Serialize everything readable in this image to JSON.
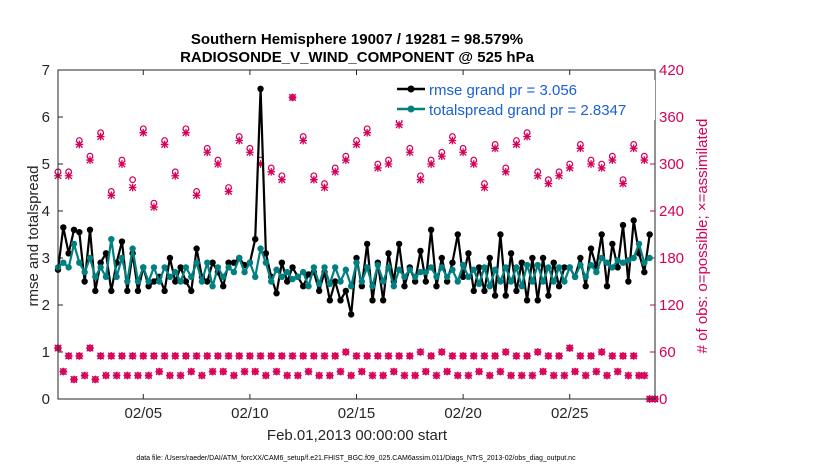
{
  "chart_data": {
    "type": "line",
    "title_line1": "Southern Hemisphere 19007 / 19281 = 98.579%",
    "title_line2": "RADIOSONDE_V_WIND_COMPONENT @ 525 hPa",
    "xlabel": "Feb.01,2013 00:00:00 start",
    "ylabel_left": "rmse and totalspread",
    "ylabel_right": "# of obs: o=possible; ×=assimilated",
    "footnote": "data file: /Users/raeder/DAI/ATM_forcXX/CAM6_setup/f.e21.FHIST_BGC.f09_025.CAM6assim.011/Diags_NTrS_2013-02/obs_diag_output.nc",
    "xlim": [
      1.0,
      29.0
    ],
    "ylim_left": [
      0,
      7
    ],
    "ylim_right": [
      0,
      420
    ],
    "x_ticks": [
      5,
      10,
      15,
      20,
      25
    ],
    "x_tick_labels": [
      "02/05",
      "02/10",
      "02/15",
      "02/20",
      "02/25"
    ],
    "y_ticks_left": [
      "0",
      "1",
      "2",
      "3",
      "4",
      "5",
      "6",
      "7"
    ],
    "y_ticks_right": [
      "0",
      "60",
      "120",
      "180",
      "240",
      "300",
      "360",
      "420"
    ],
    "legend": [
      "rmse grand pr = 3.056",
      "totalspread grand pr = 2.8347"
    ],
    "colors": {
      "rmse": "#000000",
      "spread": "#008080",
      "obs": "#d6005a",
      "legend_text": "#1a5fd6"
    },
    "x_start": 1.0,
    "x_step": 0.25,
    "series": [
      {
        "name": "rmse",
        "values": [
          2.75,
          3.65,
          3.1,
          3.6,
          3.55,
          2.5,
          3.6,
          2.3,
          2.9,
          3.1,
          2.3,
          2.9,
          3.35,
          2.3,
          3.1,
          2.3,
          2.8,
          2.4,
          2.5,
          2.6,
          2.3,
          3.0,
          2.5,
          2.8,
          2.5,
          2.3,
          3.2,
          2.6,
          2.5,
          2.9,
          2.7,
          2.4,
          2.9,
          2.9,
          3.0,
          2.85,
          2.9,
          3.4,
          6.6,
          3.1,
          2.6,
          2.25,
          2.9,
          2.5,
          2.8,
          2.6,
          2.4,
          2.65,
          2.7,
          2.3,
          2.7,
          2.1,
          2.5,
          2.1,
          2.3,
          1.8,
          3.0,
          2.4,
          3.3,
          2.1,
          2.9,
          2.1,
          3.1,
          2.5,
          3.3,
          2.4,
          2.8,
          2.5,
          3.15,
          2.5,
          3.6,
          2.4,
          3.0,
          2.5,
          2.9,
          3.5,
          2.6,
          3.1,
          2.3,
          2.8,
          2.3,
          3.0,
          2.2,
          3.5,
          2.2,
          3.1,
          2.3,
          2.9,
          2.1,
          3.0,
          2.1,
          3.0,
          2.2,
          2.9,
          2.4,
          2.8,
          2.8,
          2.6,
          3.0,
          2.4,
          3.2,
          2.8,
          3.5,
          2.4,
          3.3,
          2.8,
          3.7,
          2.5,
          3.8,
          3.1,
          2.7,
          3.5
        ]
      },
      {
        "name": "totalspread",
        "values": [
          2.8,
          2.9,
          2.8,
          3.3,
          2.9,
          2.7,
          3.0,
          2.6,
          2.8,
          2.6,
          3.4,
          2.6,
          3.0,
          2.5,
          3.2,
          2.5,
          2.8,
          2.5,
          2.8,
          2.5,
          2.8,
          2.6,
          2.7,
          2.5,
          2.8,
          2.6,
          2.9,
          2.5,
          2.9,
          2.4,
          2.8,
          2.6,
          2.8,
          2.7,
          3.0,
          2.7,
          2.9,
          2.6,
          3.2,
          2.9,
          2.5,
          2.75,
          2.6,
          2.7,
          2.55,
          2.6,
          2.7,
          2.4,
          2.8,
          2.45,
          2.8,
          2.45,
          2.8,
          2.5,
          2.75,
          2.4,
          2.9,
          2.5,
          2.8,
          2.4,
          2.85,
          2.5,
          2.8,
          2.4,
          2.75,
          2.6,
          2.75,
          2.6,
          2.7,
          2.7,
          2.8,
          2.6,
          2.8,
          2.6,
          2.75,
          2.5,
          2.85,
          2.6,
          2.75,
          2.45,
          2.8,
          2.4,
          2.75,
          2.5,
          2.8,
          2.5,
          2.8,
          2.4,
          2.85,
          2.5,
          2.85,
          2.5,
          2.8,
          2.5,
          2.8,
          2.5,
          2.8,
          2.6,
          2.85,
          2.6,
          2.85,
          2.7,
          3.0,
          2.9,
          2.8,
          2.95,
          2.9,
          2.95,
          3.0,
          3.3,
          2.9,
          3.0
        ]
      },
      {
        "name": "obs possible (o)",
        "values": [
          65,
          35,
          55,
          25,
          55,
          30,
          65,
          25,
          55,
          30,
          55,
          30,
          55,
          30,
          55,
          30,
          55,
          30,
          55,
          35,
          55,
          30,
          55,
          30,
          55,
          35,
          55,
          30,
          55,
          35,
          55,
          35,
          55,
          30,
          55,
          35,
          55,
          35,
          55,
          30,
          55,
          35,
          55,
          30,
          55,
          30,
          55,
          35,
          55,
          30,
          55,
          30,
          55,
          35,
          60,
          30,
          55,
          35,
          55,
          30,
          55,
          30,
          55,
          35,
          55,
          30,
          55,
          30,
          60,
          35,
          55,
          30,
          60,
          35,
          55,
          30,
          55,
          30,
          55,
          35,
          55,
          30,
          55,
          35,
          60,
          30,
          55,
          30,
          55,
          30,
          60,
          35,
          55,
          30,
          55,
          30,
          65,
          35,
          55,
          30,
          55,
          35,
          60,
          30,
          55,
          35,
          55,
          30,
          55,
          30,
          30,
          0
        ]
      },
      {
        "name": "obs assimilated (x)",
        "values": [
          65,
          35,
          55,
          25,
          55,
          30,
          65,
          25,
          55,
          30,
          55,
          30,
          55,
          30,
          55,
          30,
          55,
          30,
          55,
          35,
          55,
          30,
          55,
          30,
          55,
          35,
          55,
          30,
          55,
          35,
          55,
          35,
          55,
          30,
          55,
          35,
          55,
          35,
          55,
          30,
          55,
          35,
          55,
          30,
          55,
          30,
          55,
          35,
          55,
          30,
          55,
          30,
          55,
          35,
          60,
          30,
          55,
          35,
          55,
          30,
          55,
          30,
          55,
          35,
          55,
          30,
          55,
          30,
          60,
          35,
          55,
          30,
          60,
          35,
          55,
          30,
          55,
          30,
          55,
          35,
          55,
          30,
          55,
          35,
          60,
          30,
          55,
          30,
          55,
          30,
          60,
          35,
          55,
          30,
          55,
          30,
          65,
          35,
          55,
          30,
          55,
          35,
          60,
          30,
          55,
          35,
          55,
          30,
          55,
          30,
          30,
          0
        ]
      }
    ],
    "obs_high": {
      "x": [
        1.0,
        1.5,
        2.0,
        2.5,
        3.0,
        3.5,
        4.0,
        4.5,
        5.0,
        5.5,
        6.0,
        6.5,
        7.0,
        7.5,
        8.0,
        8.5,
        9.0,
        9.5,
        10.0,
        10.5,
        11.0,
        11.5,
        12.0,
        12.5,
        13.0,
        13.5,
        14.0,
        14.5,
        15.0,
        15.5,
        16.0,
        16.5,
        17.0,
        17.5,
        18.0,
        18.5,
        19.0,
        19.5,
        20.0,
        20.5,
        21.0,
        21.5,
        22.0,
        22.5,
        23.0,
        23.5,
        24.0,
        24.5,
        25.0,
        25.5,
        26.0,
        26.5,
        27.0,
        27.5,
        28.0,
        28.5,
        29.0
      ],
      "possible": [
        290,
        290,
        330,
        310,
        340,
        265,
        305,
        280,
        345,
        250,
        330,
        290,
        345,
        265,
        320,
        305,
        270,
        335,
        320,
        305,
        295,
        285,
        385,
        335,
        285,
        275,
        295,
        310,
        330,
        345,
        300,
        305,
        355,
        320,
        285,
        305,
        315,
        335,
        320,
        305,
        275,
        325,
        295,
        330,
        340,
        290,
        280,
        290,
        300,
        325,
        305,
        300,
        310,
        280,
        325,
        310,
        0
      ],
      "assimilated": [
        285,
        285,
        325,
        305,
        335,
        260,
        300,
        270,
        340,
        245,
        325,
        285,
        340,
        260,
        315,
        300,
        265,
        330,
        315,
        300,
        290,
        280,
        385,
        330,
        280,
        270,
        290,
        305,
        325,
        340,
        295,
        300,
        350,
        315,
        280,
        300,
        310,
        330,
        315,
        300,
        270,
        320,
        290,
        325,
        335,
        285,
        275,
        285,
        295,
        320,
        300,
        295,
        305,
        275,
        320,
        305,
        0
      ]
    }
  }
}
